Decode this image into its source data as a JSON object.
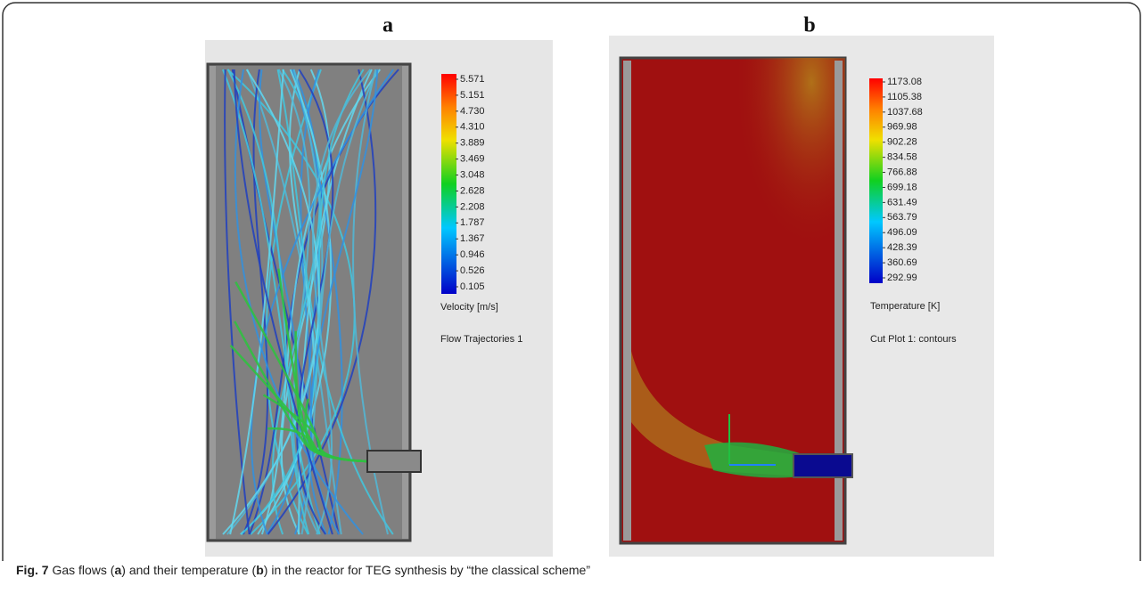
{
  "panels": [
    {
      "letter": "a",
      "colorbar": {
        "labels": [
          "5.571",
          "5.151",
          "4.730",
          "4.310",
          "3.889",
          "3.469",
          "3.048",
          "2.628",
          "2.208",
          "1.787",
          "1.367",
          "0.946",
          "0.526",
          "0.105"
        ],
        "title": "Velocity [m/s]"
      },
      "plot_name": "Flow Trajectories 1"
    },
    {
      "letter": "b",
      "colorbar": {
        "labels": [
          "1173.08",
          "1105.38",
          "1037.68",
          "969.98",
          "902.28",
          "834.58",
          "766.88",
          "699.18",
          "631.49",
          "563.79",
          "496.09",
          "428.39",
          "360.69",
          "292.99"
        ],
        "title": "Temperature [K]"
      },
      "plot_name": "Cut Plot 1: contours"
    }
  ],
  "caption": {
    "label": "Fig. 7",
    "parts": [
      " Gas flows (",
      "a",
      ") and their temperature (",
      "b",
      ") in the reactor for TEG synthesis by “the classical scheme”"
    ]
  }
}
